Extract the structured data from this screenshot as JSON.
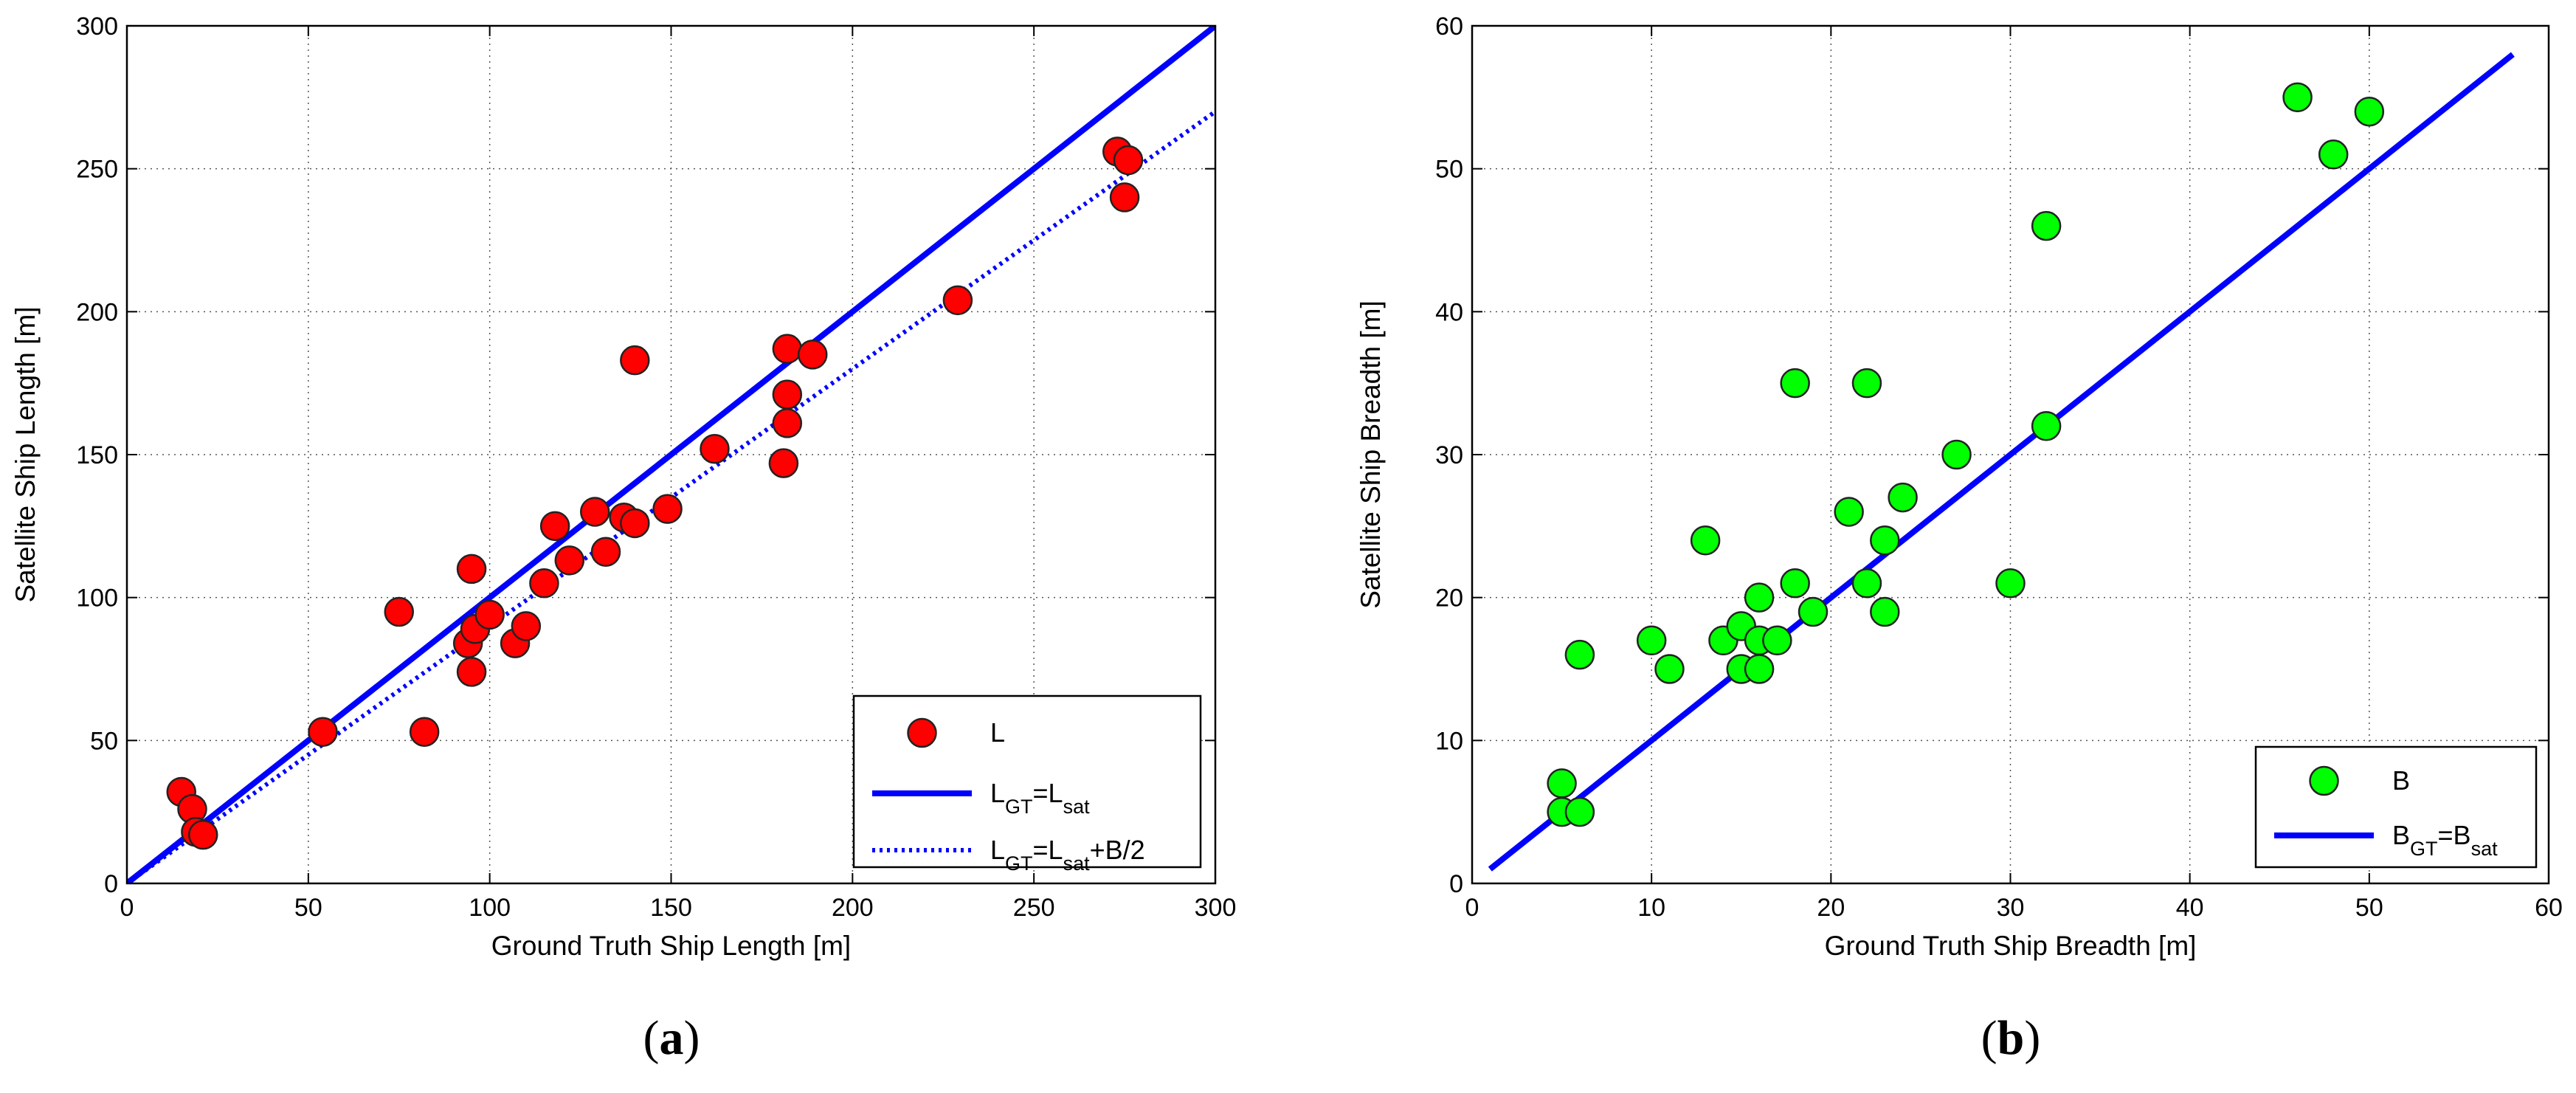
{
  "chart_data": [
    {
      "type": "scatter",
      "panel_label": "a",
      "xlabel": "Ground Truth Ship Length [m]",
      "ylabel": "Satellite Ship Length [m]",
      "xlim": [
        0,
        300
      ],
      "ylim": [
        0,
        300
      ],
      "xticks": [
        0,
        50,
        100,
        150,
        200,
        250,
        300
      ],
      "yticks": [
        0,
        50,
        100,
        150,
        200,
        250,
        300
      ],
      "grid": true,
      "legend_position": "bottom-right",
      "series": [
        {
          "name": "L",
          "kind": "markers",
          "color": "#ff0000",
          "points": [
            [
              15,
              32
            ],
            [
              18,
              26
            ],
            [
              19,
              18
            ],
            [
              21,
              17
            ],
            [
              54,
              53
            ],
            [
              75,
              95
            ],
            [
              82,
              53
            ],
            [
              94,
              84
            ],
            [
              95,
              110
            ],
            [
              95,
              74
            ],
            [
              96,
              89
            ],
            [
              100,
              94
            ],
            [
              107,
              84
            ],
            [
              110,
              90
            ],
            [
              115,
              105
            ],
            [
              118,
              125
            ],
            [
              122,
              113
            ],
            [
              129,
              130
            ],
            [
              132,
              116
            ],
            [
              137,
              128
            ],
            [
              140,
              183
            ],
            [
              140,
              126
            ],
            [
              149,
              131
            ],
            [
              162,
              152
            ],
            [
              181,
              147
            ],
            [
              182,
              161
            ],
            [
              182,
              171
            ],
            [
              182,
              187
            ],
            [
              189,
              185
            ],
            [
              229,
              204
            ],
            [
              273,
              256
            ],
            [
              275,
              240
            ],
            [
              276,
              253
            ]
          ]
        },
        {
          "name_parts": [
            {
              "text": "L",
              "sub": false
            },
            {
              "text": "GT",
              "sub": true
            },
            {
              "text": "=L",
              "sub": false
            },
            {
              "text": "sat",
              "sub": true
            }
          ],
          "kind": "line",
          "style": "solid",
          "color": "#0000ff",
          "points": [
            [
              0,
              0
            ],
            [
              300,
              300
            ]
          ]
        },
        {
          "name_parts": [
            {
              "text": "L",
              "sub": false
            },
            {
              "text": "GT",
              "sub": true
            },
            {
              "text": "=L",
              "sub": false
            },
            {
              "text": "sat",
              "sub": true
            },
            {
              "text": "+B/2",
              "sub": false
            }
          ],
          "kind": "line",
          "style": "dotted",
          "color": "#0000ff",
          "points": [
            [
              0,
              0
            ],
            [
              300,
              270
            ]
          ]
        }
      ]
    },
    {
      "type": "scatter",
      "panel_label": "b",
      "xlabel": "Ground Truth Ship Breadth [m]",
      "ylabel": "Satellite Ship Breadth [m]",
      "xlim": [
        0,
        60
      ],
      "ylim": [
        0,
        60
      ],
      "xticks": [
        0,
        10,
        20,
        30,
        40,
        50,
        60
      ],
      "yticks": [
        0,
        10,
        20,
        30,
        40,
        50,
        60
      ],
      "grid": true,
      "legend_position": "bottom-right",
      "series": [
        {
          "name": "B",
          "kind": "markers",
          "color": "#00ff00",
          "points": [
            [
              5,
              7
            ],
            [
              5,
              5
            ],
            [
              6,
              16
            ],
            [
              6,
              5
            ],
            [
              10,
              17
            ],
            [
              11,
              15
            ],
            [
              13,
              24
            ],
            [
              14,
              17
            ],
            [
              15,
              18
            ],
            [
              15,
              15
            ],
            [
              16,
              20
            ],
            [
              16,
              17
            ],
            [
              16,
              15
            ],
            [
              17,
              17
            ],
            [
              18,
              35
            ],
            [
              18,
              21
            ],
            [
              19,
              19
            ],
            [
              21,
              26
            ],
            [
              22,
              35
            ],
            [
              22,
              21
            ],
            [
              23,
              24
            ],
            [
              23,
              19
            ],
            [
              24,
              27
            ],
            [
              27,
              30
            ],
            [
              30,
              21
            ],
            [
              32,
              46
            ],
            [
              32,
              32
            ],
            [
              46,
              55
            ],
            [
              48,
              51
            ],
            [
              50,
              54
            ]
          ]
        },
        {
          "name_parts": [
            {
              "text": "B",
              "sub": false
            },
            {
              "text": "GT",
              "sub": true
            },
            {
              "text": "=B",
              "sub": false
            },
            {
              "text": "sat",
              "sub": true
            }
          ],
          "kind": "line",
          "style": "solid",
          "color": "#0000ff",
          "points": [
            [
              1,
              1
            ],
            [
              58,
              58
            ]
          ]
        }
      ]
    }
  ]
}
